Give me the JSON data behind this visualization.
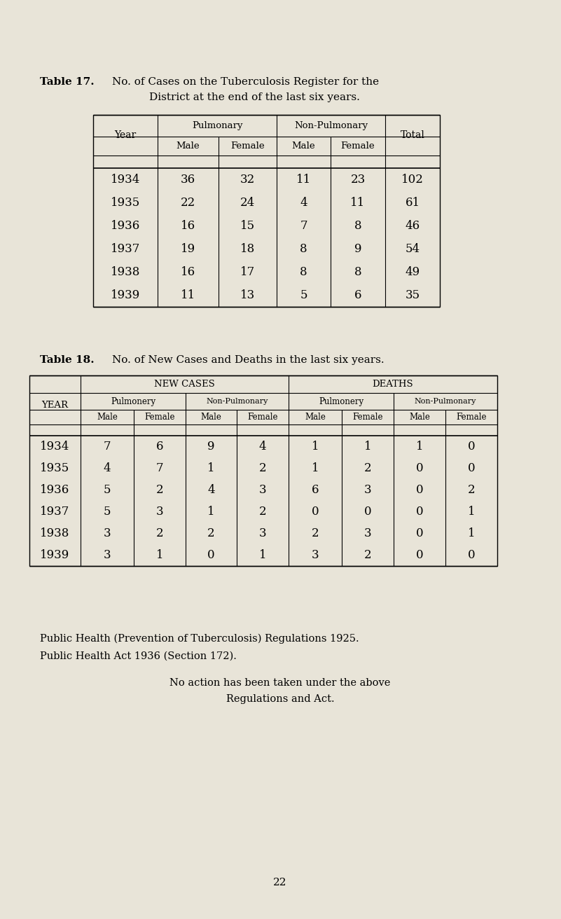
{
  "bg_color": "#e8e4d8",
  "table17": {
    "years": [
      "1934",
      "1935",
      "1936",
      "1937",
      "1938",
      "1939"
    ],
    "pulm_male": [
      36,
      22,
      16,
      19,
      16,
      11
    ],
    "pulm_female": [
      32,
      24,
      15,
      18,
      17,
      13
    ],
    "nonpulm_male": [
      11,
      4,
      7,
      8,
      8,
      5
    ],
    "nonpulm_female": [
      23,
      11,
      8,
      9,
      8,
      6
    ],
    "total": [
      102,
      61,
      46,
      54,
      49,
      35
    ]
  },
  "table18": {
    "years": [
      "1934",
      "1935",
      "1936",
      "1937",
      "1938",
      "1939"
    ],
    "nc_pulm_male": [
      7,
      4,
      5,
      5,
      3,
      3
    ],
    "nc_pulm_female": [
      6,
      7,
      2,
      3,
      2,
      1
    ],
    "nc_nonpulm_male": [
      9,
      1,
      4,
      1,
      2,
      0
    ],
    "nc_nonpulm_female": [
      4,
      2,
      3,
      2,
      3,
      1
    ],
    "d_pulm_male": [
      1,
      1,
      6,
      0,
      2,
      3
    ],
    "d_pulm_female": [
      1,
      2,
      3,
      0,
      3,
      2
    ],
    "d_nonpulm_male": [
      1,
      0,
      0,
      0,
      0,
      0
    ],
    "d_nonpulm_female": [
      0,
      0,
      2,
      1,
      1,
      0
    ]
  },
  "t17_title1": "Table 17.",
  "t17_title2": "No. of Cases on the Tuberculosis Register for the",
  "t17_title3": "District at the end of the last six years.",
  "t18_title1": "Table 18.",
  "t18_title2": "No. of New Cases and Deaths in the last six years.",
  "footer_line1": "Public Health (Prevention of Tuberculosis) Regulations 1925.",
  "footer_line2": "Public Health Act 1936 (Section 172).",
  "footer_line3": "No action has been taken under the above",
  "footer_line4": "Regulations and Act.",
  "page_number": "22"
}
